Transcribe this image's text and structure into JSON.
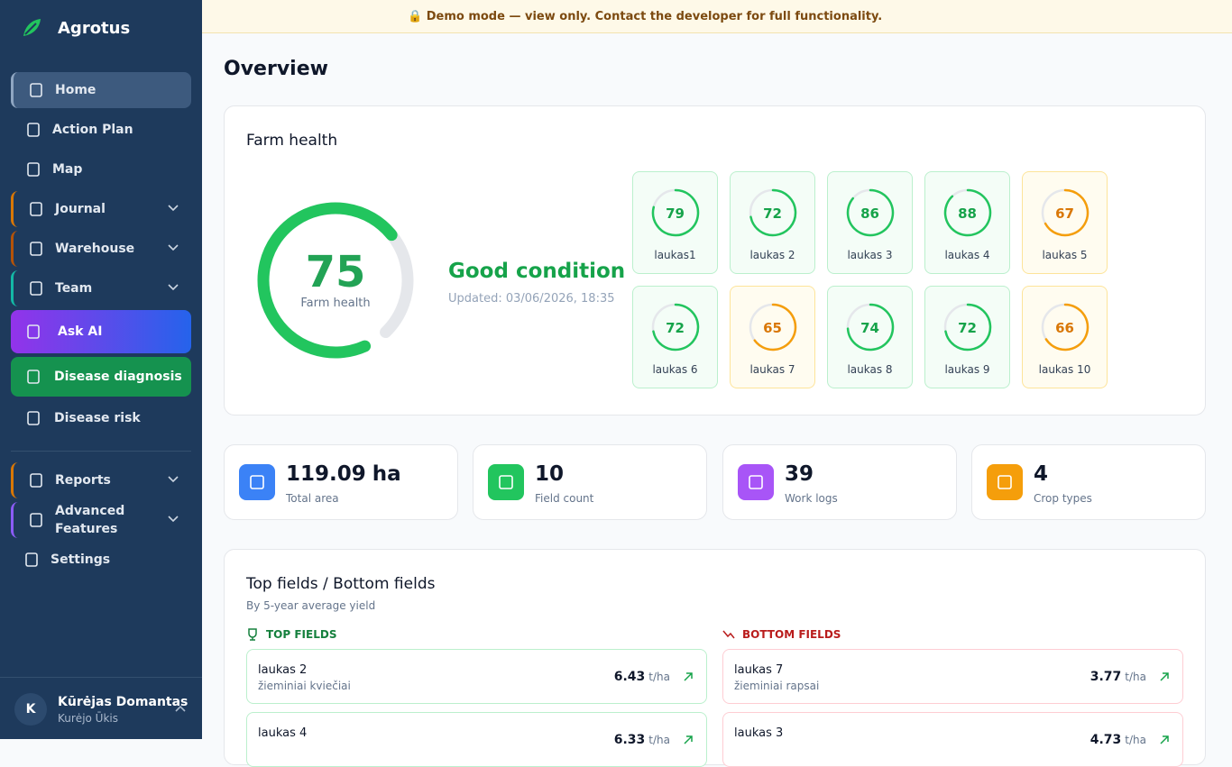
{
  "banner": "🔒 Demo mode — view only. Contact the developer for full functionality.",
  "sidebar": {
    "brand": "Agrotus",
    "nav": [
      {
        "label": "Home"
      },
      {
        "label": "Action Plan"
      },
      {
        "label": "Map"
      },
      {
        "label": "Journal"
      },
      {
        "label": "Warehouse"
      },
      {
        "label": "Team"
      },
      {
        "label": "Ask AI"
      },
      {
        "label": "Disease diagnosis"
      },
      {
        "label": "Disease risk"
      },
      {
        "label": "Reports"
      },
      {
        "label": "Advanced Features"
      },
      {
        "label": "Settings"
      }
    ],
    "user": {
      "initial": "K",
      "name": "Kūrėjas Domantas",
      "farm": "Kurėjo Ūkis"
    }
  },
  "page_title": "Overview",
  "farm_health": {
    "title": "Farm health",
    "score": 75,
    "score_label": "Farm health",
    "status": "Good condition",
    "updated": "Updated: 03/06/2026, 18:35",
    "fields": [
      {
        "name": "laukas1",
        "score": 79
      },
      {
        "name": "laukas 2",
        "score": 72
      },
      {
        "name": "laukas 3",
        "score": 86
      },
      {
        "name": "laukas 4",
        "score": 88
      },
      {
        "name": "laukas 5",
        "score": 67
      },
      {
        "name": "laukas 6",
        "score": 72
      },
      {
        "name": "laukas 7",
        "score": 65
      },
      {
        "name": "laukas 8",
        "score": 74
      },
      {
        "name": "laukas 9",
        "score": 72
      },
      {
        "name": "laukas 10",
        "score": 66
      }
    ]
  },
  "stats": [
    {
      "value": 119.09,
      "unit": "ha",
      "label": "Total area"
    },
    {
      "value": 10,
      "label": "Field count"
    },
    {
      "value": 39,
      "label": "Work logs"
    },
    {
      "value": 4,
      "label": "Crop types"
    }
  ],
  "rankings": {
    "title": "Top fields / Bottom fields",
    "subtitle": "By 5-year average yield",
    "top": {
      "heading": "TOP FIELDS",
      "fields": [
        {
          "name": "laukas 2",
          "crop": "žieminiai kviečiai",
          "yield": 6.43,
          "unit": "t/ha"
        },
        {
          "name": "laukas 4",
          "yield": 6.33,
          "unit": "t/ha"
        }
      ]
    },
    "bottom": {
      "heading": "BOTTOM FIELDS",
      "fields": [
        {
          "name": "laukas 7",
          "crop": "žieminiai rapsai",
          "yield": 3.77,
          "unit": "t/ha"
        },
        {
          "name": "laukas 3",
          "yield": 4.73,
          "unit": "t/ha"
        }
      ]
    }
  }
}
